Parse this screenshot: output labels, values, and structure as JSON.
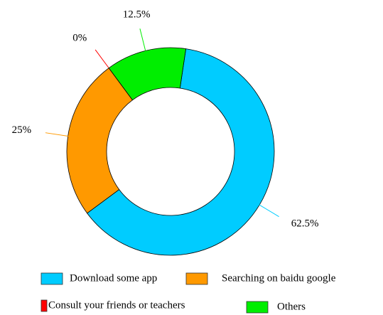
{
  "chart_data": {
    "type": "donut",
    "categories": [
      "Download some app",
      "Searching on baidu google",
      "Consult your friends or teachers",
      "Others"
    ],
    "values": [
      62.5,
      25,
      0,
      12.5
    ],
    "value_labels": [
      "62.5%",
      "25%",
      "0%",
      "12.5%"
    ],
    "colors": [
      "#00ccff",
      "#ff9900",
      "#ff0000",
      "#00ee00"
    ]
  }
}
